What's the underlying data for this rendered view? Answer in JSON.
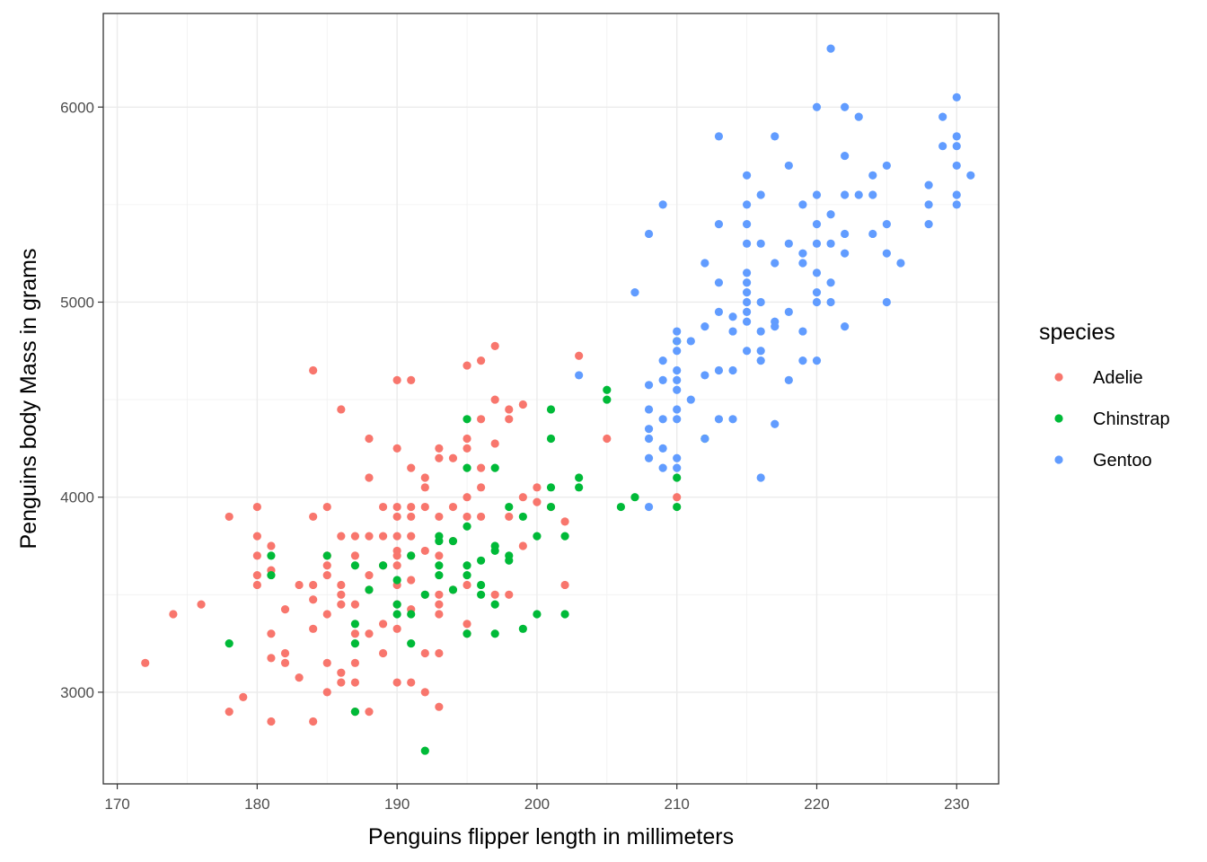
{
  "chart_data": {
    "type": "scatter",
    "xlabel": "Penguins flipper length in millimeters",
    "ylabel": "Penguins body Mass in grams",
    "xlim": [
      169,
      233
    ],
    "ylim": [
      2530,
      6480
    ],
    "x_ticks": [
      170,
      180,
      190,
      200,
      210,
      220,
      230
    ],
    "y_ticks": [
      3000,
      4000,
      5000,
      6000
    ],
    "grid": true,
    "legend": {
      "title": "species",
      "position": "right"
    },
    "series": [
      {
        "name": "Adelie",
        "color": "#F8766D",
        "points": [
          [
            172,
            3150
          ],
          [
            174,
            3400
          ],
          [
            176,
            3450
          ],
          [
            178,
            3900
          ],
          [
            178,
            2900
          ],
          [
            179,
            2975
          ],
          [
            180,
            3950
          ],
          [
            180,
            3800
          ],
          [
            180,
            3700
          ],
          [
            180,
            3600
          ],
          [
            180,
            3550
          ],
          [
            181,
            3750
          ],
          [
            181,
            3625
          ],
          [
            181,
            3300
          ],
          [
            181,
            3175
          ],
          [
            181,
            2850
          ],
          [
            182,
            3425
          ],
          [
            182,
            3200
          ],
          [
            182,
            3150
          ],
          [
            183,
            3550
          ],
          [
            183,
            3075
          ],
          [
            184,
            4650
          ],
          [
            184,
            3900
          ],
          [
            184,
            3550
          ],
          [
            184,
            3475
          ],
          [
            184,
            3325
          ],
          [
            184,
            2850
          ],
          [
            185,
            3950
          ],
          [
            185,
            3700
          ],
          [
            185,
            3650
          ],
          [
            185,
            3600
          ],
          [
            185,
            3400
          ],
          [
            185,
            3150
          ],
          [
            185,
            3000
          ],
          [
            186,
            4450
          ],
          [
            186,
            3800
          ],
          [
            186,
            3550
          ],
          [
            186,
            3500
          ],
          [
            186,
            3450
          ],
          [
            186,
            3100
          ],
          [
            186,
            3050
          ],
          [
            187,
            3800
          ],
          [
            187,
            3700
          ],
          [
            187,
            3450
          ],
          [
            187,
            3300
          ],
          [
            187,
            3150
          ],
          [
            187,
            3050
          ],
          [
            187,
            2900
          ],
          [
            188,
            4300
          ],
          [
            188,
            4100
          ],
          [
            188,
            3800
          ],
          [
            188,
            3600
          ],
          [
            188,
            3525
          ],
          [
            188,
            3300
          ],
          [
            188,
            2900
          ],
          [
            189,
            3950
          ],
          [
            189,
            3800
          ],
          [
            189,
            3650
          ],
          [
            189,
            3350
          ],
          [
            189,
            3200
          ],
          [
            190,
            4600
          ],
          [
            190,
            4250
          ],
          [
            190,
            3950
          ],
          [
            190,
            3900
          ],
          [
            190,
            3800
          ],
          [
            190,
            3725
          ],
          [
            190,
            3700
          ],
          [
            190,
            3650
          ],
          [
            190,
            3550
          ],
          [
            190,
            3450
          ],
          [
            190,
            3325
          ],
          [
            190,
            3050
          ],
          [
            191,
            4600
          ],
          [
            191,
            4150
          ],
          [
            191,
            3950
          ],
          [
            191,
            3900
          ],
          [
            191,
            3800
          ],
          [
            191,
            3700
          ],
          [
            191,
            3575
          ],
          [
            191,
            3425
          ],
          [
            191,
            3050
          ],
          [
            192,
            4100
          ],
          [
            192,
            4050
          ],
          [
            192,
            3950
          ],
          [
            192,
            3725
          ],
          [
            192,
            3500
          ],
          [
            192,
            3200
          ],
          [
            192,
            3000
          ],
          [
            193,
            4250
          ],
          [
            193,
            4200
          ],
          [
            193,
            3900
          ],
          [
            193,
            3700
          ],
          [
            193,
            3500
          ],
          [
            193,
            3450
          ],
          [
            193,
            3400
          ],
          [
            193,
            3200
          ],
          [
            193,
            2925
          ],
          [
            194,
            4200
          ],
          [
            194,
            3950
          ],
          [
            194,
            3775
          ],
          [
            194,
            3525
          ],
          [
            195,
            4675
          ],
          [
            195,
            4300
          ],
          [
            195,
            4250
          ],
          [
            195,
            4000
          ],
          [
            195,
            3900
          ],
          [
            195,
            3550
          ],
          [
            195,
            3350
          ],
          [
            195,
            3300
          ],
          [
            196,
            4700
          ],
          [
            196,
            4400
          ],
          [
            196,
            4150
          ],
          [
            196,
            4050
          ],
          [
            196,
            3900
          ],
          [
            197,
            4775
          ],
          [
            197,
            4500
          ],
          [
            197,
            4275
          ],
          [
            197,
            3500
          ],
          [
            198,
            4450
          ],
          [
            198,
            4400
          ],
          [
            198,
            3900
          ],
          [
            198,
            3500
          ],
          [
            199,
            4475
          ],
          [
            199,
            4000
          ],
          [
            199,
            3750
          ],
          [
            200,
            4050
          ],
          [
            200,
            3975
          ],
          [
            201,
            3950
          ],
          [
            202,
            3875
          ],
          [
            202,
            3550
          ],
          [
            203,
            4725
          ],
          [
            205,
            4300
          ],
          [
            210,
            4000
          ]
        ]
      },
      {
        "name": "Chinstrap",
        "color": "#00BA38",
        "points": [
          [
            178,
            3250
          ],
          [
            181,
            3700
          ],
          [
            181,
            3600
          ],
          [
            185,
            3700
          ],
          [
            187,
            3650
          ],
          [
            187,
            3350
          ],
          [
            187,
            3250
          ],
          [
            187,
            2900
          ],
          [
            188,
            3525
          ],
          [
            189,
            3650
          ],
          [
            190,
            3575
          ],
          [
            190,
            3450
          ],
          [
            190,
            3400
          ],
          [
            191,
            3700
          ],
          [
            191,
            3400
          ],
          [
            191,
            3250
          ],
          [
            192,
            3500
          ],
          [
            192,
            2700
          ],
          [
            193,
            3800
          ],
          [
            193,
            3775
          ],
          [
            193,
            3650
          ],
          [
            193,
            3600
          ],
          [
            194,
            3775
          ],
          [
            194,
            3525
          ],
          [
            195,
            4400
          ],
          [
            195,
            4150
          ],
          [
            195,
            3850
          ],
          [
            195,
            3650
          ],
          [
            195,
            3600
          ],
          [
            195,
            3300
          ],
          [
            196,
            3550
          ],
          [
            196,
            3500
          ],
          [
            196,
            3675
          ],
          [
            197,
            4150
          ],
          [
            197,
            3750
          ],
          [
            197,
            3725
          ],
          [
            197,
            3450
          ],
          [
            197,
            3300
          ],
          [
            198,
            3950
          ],
          [
            198,
            3700
          ],
          [
            198,
            3675
          ],
          [
            199,
            3900
          ],
          [
            199,
            3325
          ],
          [
            200,
            3800
          ],
          [
            200,
            3400
          ],
          [
            201,
            4450
          ],
          [
            201,
            4300
          ],
          [
            201,
            4050
          ],
          [
            201,
            3950
          ],
          [
            202,
            3800
          ],
          [
            202,
            3400
          ],
          [
            203,
            4100
          ],
          [
            203,
            4050
          ],
          [
            205,
            4550
          ],
          [
            205,
            4500
          ],
          [
            206,
            3950
          ],
          [
            207,
            4000
          ],
          [
            210,
            4800
          ],
          [
            210,
            4100
          ],
          [
            210,
            3950
          ],
          [
            212,
            4300
          ]
        ]
      },
      {
        "name": "Gentoo",
        "color": "#619CFF",
        "points": [
          [
            203,
            4625
          ],
          [
            207,
            5050
          ],
          [
            208,
            5350
          ],
          [
            208,
            4575
          ],
          [
            208,
            4450
          ],
          [
            208,
            4350
          ],
          [
            208,
            4300
          ],
          [
            208,
            4200
          ],
          [
            208,
            3950
          ],
          [
            209,
            5500
          ],
          [
            209,
            4700
          ],
          [
            209,
            4600
          ],
          [
            209,
            4400
          ],
          [
            209,
            4250
          ],
          [
            209,
            4150
          ],
          [
            210,
            4850
          ],
          [
            210,
            4800
          ],
          [
            210,
            4750
          ],
          [
            210,
            4650
          ],
          [
            210,
            4600
          ],
          [
            210,
            4550
          ],
          [
            210,
            4450
          ],
          [
            210,
            4400
          ],
          [
            210,
            4200
          ],
          [
            210,
            4150
          ],
          [
            211,
            4800
          ],
          [
            211,
            4500
          ],
          [
            212,
            5200
          ],
          [
            212,
            4875
          ],
          [
            212,
            4625
          ],
          [
            212,
            4300
          ],
          [
            213,
            5850
          ],
          [
            213,
            5400
          ],
          [
            213,
            5100
          ],
          [
            213,
            4950
          ],
          [
            213,
            4650
          ],
          [
            213,
            4400
          ],
          [
            214,
            4925
          ],
          [
            214,
            4850
          ],
          [
            214,
            4650
          ],
          [
            214,
            4400
          ],
          [
            215,
            5650
          ],
          [
            215,
            5500
          ],
          [
            215,
            5400
          ],
          [
            215,
            5300
          ],
          [
            215,
            5150
          ],
          [
            215,
            5100
          ],
          [
            215,
            5050
          ],
          [
            215,
            5000
          ],
          [
            215,
            4950
          ],
          [
            215,
            4900
          ],
          [
            215,
            4750
          ],
          [
            216,
            5550
          ],
          [
            216,
            5300
          ],
          [
            216,
            5000
          ],
          [
            216,
            4850
          ],
          [
            216,
            4750
          ],
          [
            216,
            4700
          ],
          [
            216,
            4100
          ],
          [
            217,
            5850
          ],
          [
            217,
            5200
          ],
          [
            217,
            4900
          ],
          [
            217,
            4875
          ],
          [
            217,
            4375
          ],
          [
            218,
            5700
          ],
          [
            218,
            5300
          ],
          [
            218,
            4950
          ],
          [
            218,
            4600
          ],
          [
            219,
            5500
          ],
          [
            219,
            5250
          ],
          [
            219,
            5200
          ],
          [
            219,
            4850
          ],
          [
            219,
            4700
          ],
          [
            220,
            6000
          ],
          [
            220,
            5550
          ],
          [
            220,
            5400
          ],
          [
            220,
            5300
          ],
          [
            220,
            5150
          ],
          [
            220,
            5050
          ],
          [
            220,
            5000
          ],
          [
            220,
            4700
          ],
          [
            221,
            6300
          ],
          [
            221,
            5450
          ],
          [
            221,
            5300
          ],
          [
            221,
            5100
          ],
          [
            221,
            5000
          ],
          [
            222,
            6000
          ],
          [
            222,
            5750
          ],
          [
            222,
            5550
          ],
          [
            222,
            5350
          ],
          [
            222,
            5250
          ],
          [
            222,
            4875
          ],
          [
            223,
            5950
          ],
          [
            223,
            5550
          ],
          [
            224,
            5650
          ],
          [
            224,
            5550
          ],
          [
            224,
            5350
          ],
          [
            225,
            5700
          ],
          [
            225,
            5400
          ],
          [
            225,
            5250
          ],
          [
            225,
            5000
          ],
          [
            226,
            5200
          ],
          [
            228,
            5600
          ],
          [
            228,
            5500
          ],
          [
            228,
            5400
          ],
          [
            229,
            5950
          ],
          [
            229,
            5800
          ],
          [
            230,
            6050
          ],
          [
            230,
            5850
          ],
          [
            230,
            5800
          ],
          [
            230,
            5700
          ],
          [
            230,
            5550
          ],
          [
            230,
            5500
          ],
          [
            231,
            5650
          ]
        ]
      }
    ]
  }
}
